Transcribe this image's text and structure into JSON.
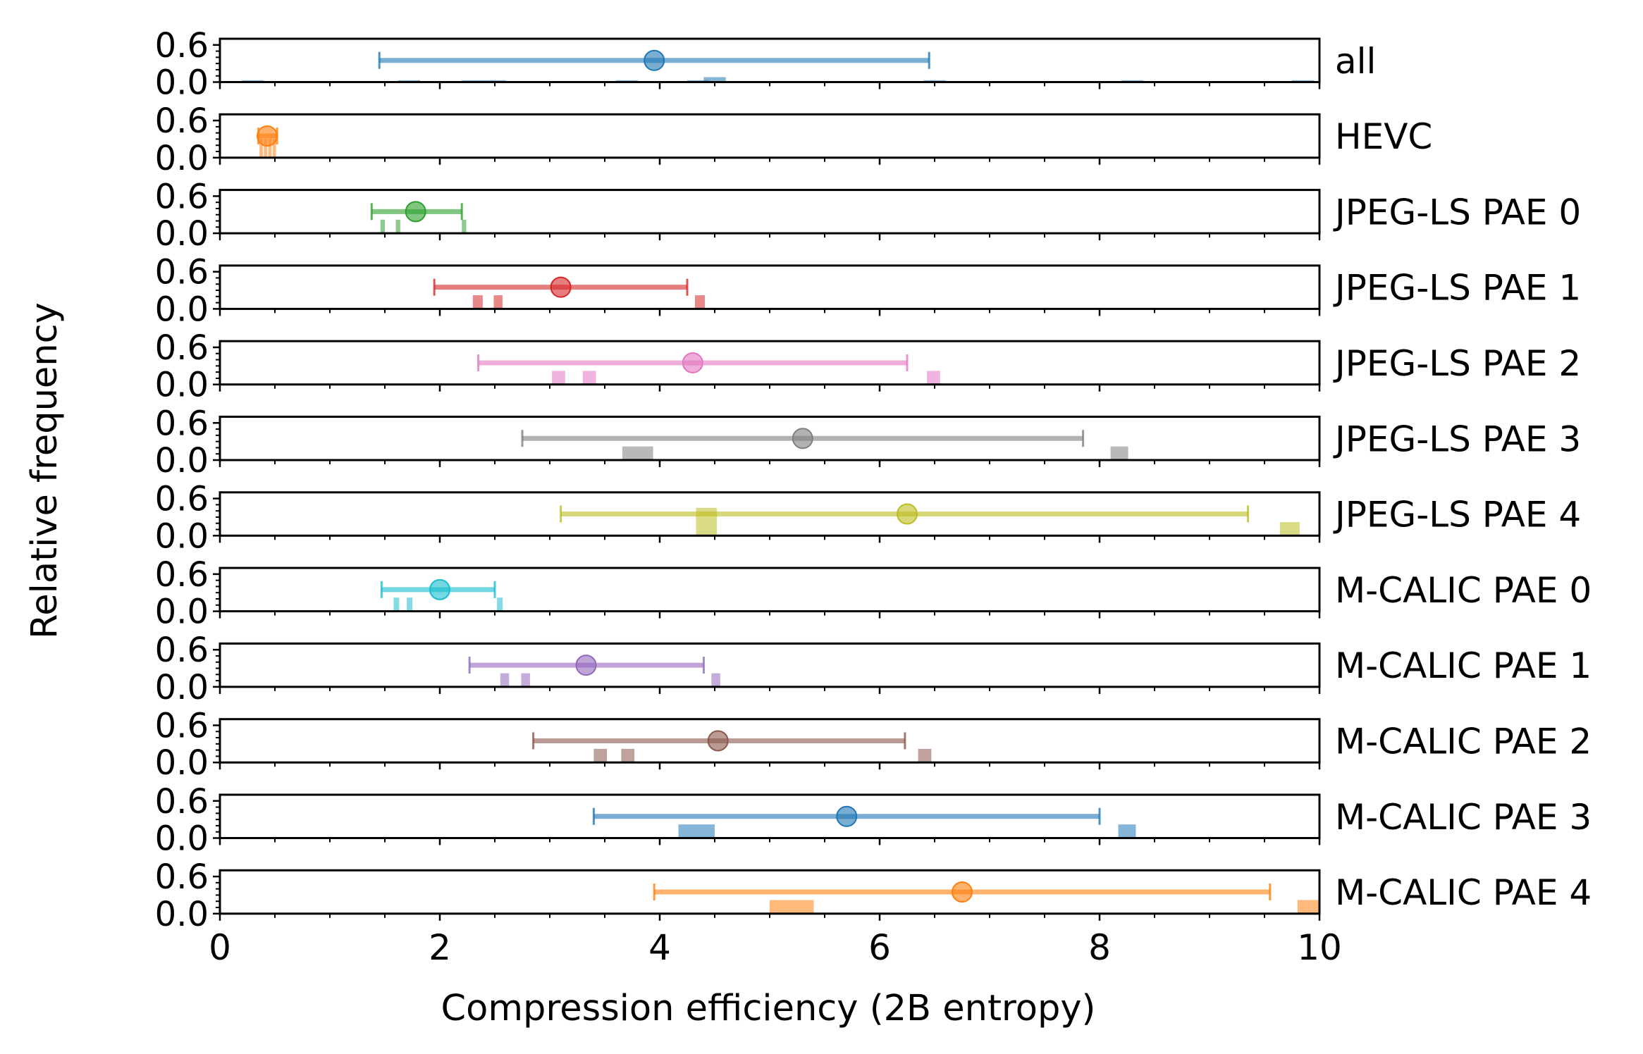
{
  "chart_data": {
    "type": "errorbar-histogram",
    "xlabel": "Compression efficiency (2B entropy)",
    "ylabel": "Relative frequency",
    "xlim": [
      0,
      10
    ],
    "ylim": [
      0,
      0.7
    ],
    "x_ticks": [
      0,
      2,
      4,
      6,
      8,
      10
    ],
    "y_ticks": [
      0.0,
      0.6
    ],
    "y_tick_labels": [
      "0.0",
      "0.6"
    ],
    "panels": [
      {
        "label": "all",
        "color": "#1f77b4",
        "mean": 3.95,
        "low": 1.45,
        "high": 6.45,
        "bars": [
          [
            0.2,
            0.4,
            0.03
          ],
          [
            1.62,
            1.82,
            0.03
          ],
          [
            2.2,
            2.6,
            0.03
          ],
          [
            3.6,
            3.8,
            0.03
          ],
          [
            4.25,
            4.45,
            0.03
          ],
          [
            4.4,
            4.6,
            0.08
          ],
          [
            6.4,
            6.6,
            0.03
          ],
          [
            8.2,
            8.4,
            0.03
          ],
          [
            9.75,
            9.95,
            0.03
          ]
        ]
      },
      {
        "label": "HEVC",
        "color": "#ff7f0e",
        "mean": 0.43,
        "low": 0.35,
        "high": 0.52,
        "bars": [
          [
            0.36,
            0.39,
            0.3
          ],
          [
            0.4,
            0.43,
            0.3
          ],
          [
            0.44,
            0.47,
            0.3
          ],
          [
            0.48,
            0.51,
            0.3
          ]
        ]
      },
      {
        "label": "JPEG-LS PAE 0",
        "color": "#2ca02c",
        "mean": 1.78,
        "low": 1.38,
        "high": 2.2,
        "bars": [
          [
            1.46,
            1.5,
            0.22
          ],
          [
            1.6,
            1.64,
            0.22
          ],
          [
            2.2,
            2.24,
            0.22
          ]
        ]
      },
      {
        "label": "JPEG-LS PAE 1",
        "color": "#d62728",
        "mean": 3.1,
        "low": 1.95,
        "high": 4.25,
        "bars": [
          [
            2.3,
            2.39,
            0.22
          ],
          [
            2.49,
            2.57,
            0.22
          ],
          [
            4.32,
            4.41,
            0.22
          ]
        ]
      },
      {
        "label": "JPEG-LS PAE 2",
        "color": "#e377c2",
        "mean": 4.3,
        "low": 2.35,
        "high": 6.25,
        "bars": [
          [
            3.02,
            3.14,
            0.22
          ],
          [
            3.3,
            3.42,
            0.22
          ],
          [
            6.43,
            6.55,
            0.22
          ]
        ]
      },
      {
        "label": "JPEG-LS PAE 3",
        "color": "#7f7f7f",
        "mean": 5.3,
        "low": 2.75,
        "high": 7.85,
        "bars": [
          [
            3.66,
            3.94,
            0.22
          ],
          [
            8.1,
            8.26,
            0.22
          ]
        ]
      },
      {
        "label": "JPEG-LS PAE 4",
        "color": "#bcbd22",
        "mean": 6.25,
        "low": 3.1,
        "high": 9.35,
        "bars": [
          [
            4.33,
            4.52,
            0.45
          ],
          [
            9.64,
            9.82,
            0.22
          ]
        ]
      },
      {
        "label": "M-CALIC PAE 0",
        "color": "#17becf",
        "mean": 2.0,
        "low": 1.47,
        "high": 2.5,
        "bars": [
          [
            1.58,
            1.63,
            0.22
          ],
          [
            1.7,
            1.75,
            0.22
          ],
          [
            2.52,
            2.57,
            0.22
          ]
        ]
      },
      {
        "label": "M-CALIC PAE 1",
        "color": "#9467bd",
        "mean": 3.33,
        "low": 2.27,
        "high": 4.4,
        "bars": [
          [
            2.55,
            2.63,
            0.22
          ],
          [
            2.74,
            2.82,
            0.22
          ],
          [
            4.47,
            4.55,
            0.22
          ]
        ]
      },
      {
        "label": "M-CALIC PAE 2",
        "color": "#8c564b",
        "mean": 4.53,
        "low": 2.85,
        "high": 6.23,
        "bars": [
          [
            3.4,
            3.52,
            0.22
          ],
          [
            3.65,
            3.77,
            0.22
          ],
          [
            6.35,
            6.47,
            0.22
          ]
        ]
      },
      {
        "label": "M-CALIC PAE 3",
        "color": "#1f77b4",
        "mean": 5.7,
        "low": 3.4,
        "high": 8.0,
        "bars": [
          [
            4.17,
            4.5,
            0.22
          ],
          [
            8.17,
            8.33,
            0.22
          ]
        ]
      },
      {
        "label": "M-CALIC PAE 4",
        "color": "#ff7f0e",
        "mean": 6.75,
        "low": 3.95,
        "high": 9.55,
        "bars": [
          [
            5.0,
            5.4,
            0.22
          ],
          [
            9.8,
            10.0,
            0.22
          ]
        ]
      }
    ]
  }
}
